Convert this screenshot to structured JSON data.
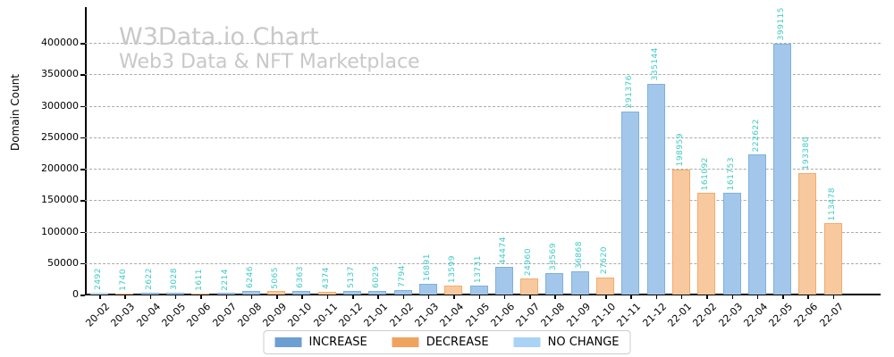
{
  "chart_data": {
    "type": "bar",
    "title": "W3Data.io Chart",
    "subtitle": "Web3 Data & NFT Marketplace",
    "ylabel": "Domain Count",
    "xlabel": "",
    "ylim": [
      0,
      455000
    ],
    "yticks": [
      0,
      50000,
      100000,
      150000,
      200000,
      250000,
      300000,
      350000,
      400000
    ],
    "grid": "horizontal-dashed",
    "legend_position": "bottom-center",
    "categories": [
      "20-02",
      "20-03",
      "20-04",
      "20-05",
      "20-06",
      "20-07",
      "20-08",
      "20-09",
      "20-10",
      "20-11",
      "20-12",
      "21-01",
      "21-02",
      "21-03",
      "21-04",
      "21-05",
      "21-06",
      "21-07",
      "21-08",
      "21-09",
      "21-10",
      "21-11",
      "21-12",
      "22-01",
      "22-02",
      "22-03",
      "22-04",
      "22-05",
      "22-06",
      "22-07"
    ],
    "values": [
      2492,
      1740,
      2622,
      3028,
      1611,
      2214,
      6246,
      5065,
      6363,
      4374,
      5137,
      6029,
      7794,
      16891,
      13599,
      13731,
      44474,
      24960,
      33569,
      36868,
      27620,
      291376,
      335144,
      198959,
      161092,
      161753,
      222622,
      399115,
      193380,
      113478
    ],
    "statuses": [
      "no_change",
      "decrease",
      "increase",
      "increase",
      "decrease",
      "increase",
      "increase",
      "decrease",
      "increase",
      "decrease",
      "increase",
      "increase",
      "increase",
      "increase",
      "decrease",
      "increase",
      "increase",
      "decrease",
      "increase",
      "increase",
      "decrease",
      "increase",
      "increase",
      "decrease",
      "decrease",
      "increase",
      "increase",
      "increase",
      "decrease",
      "decrease"
    ],
    "value_label_color": "#3fc9c4",
    "colors": {
      "increase": {
        "fill": "#a3c7ea",
        "edge": "#7fb0e0",
        "legend": "#6d9fd3"
      },
      "decrease": {
        "fill": "#f8c99e",
        "edge": "#f3ab6c",
        "legend": "#f0a35f"
      },
      "no_change": {
        "fill": "#cfe6f9",
        "edge": "#b1d8f6",
        "legend": "#a9d3f5"
      }
    },
    "legend": {
      "items": [
        {
          "key": "increase",
          "label": "INCREASE"
        },
        {
          "key": "decrease",
          "label": "DECREASE"
        },
        {
          "key": "no_change",
          "label": "NO CHANGE"
        }
      ]
    }
  }
}
